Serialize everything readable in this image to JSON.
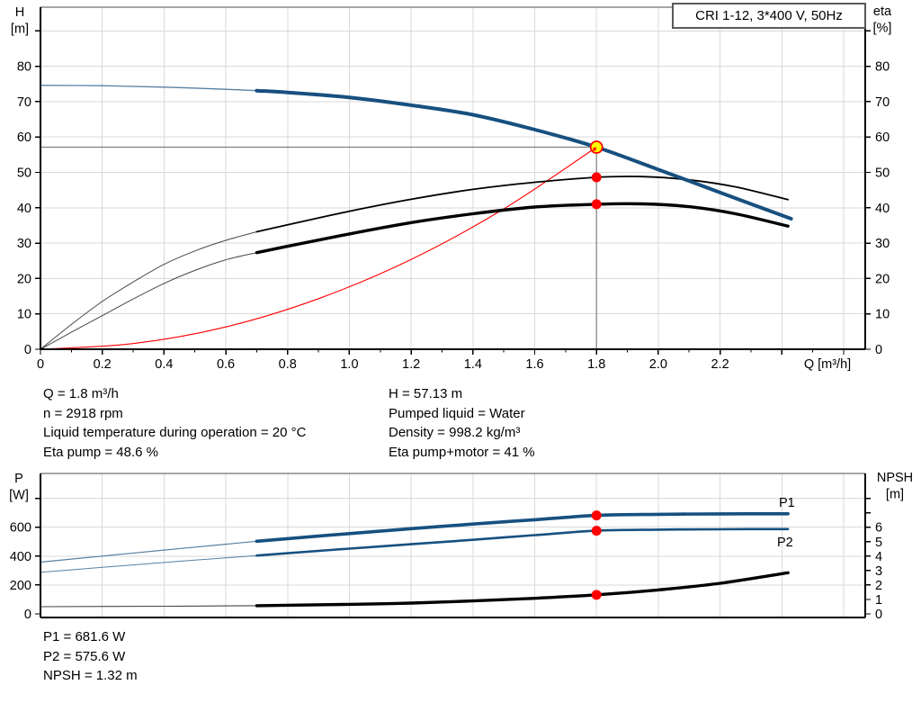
{
  "title_box": {
    "text": "CRI 1-12, 3*400 V, 50Hz"
  },
  "operating_point_info": {
    "left_column": [
      "Q = 1.8 m³/h",
      "n = 2918 rpm",
      "Liquid temperature during operation = 20 °C",
      "Eta pump = 48.6 %"
    ],
    "right_column": [
      "H = 57.13 m",
      "Pumped liquid = Water",
      "Density = 998.2 kg/m³",
      "Eta pump+motor = 41 %"
    ],
    "bottom_block": [
      "P1 = 681.6 W",
      "P2 = 575.6 W",
      "NPSH = 1.32 m"
    ]
  },
  "colors": {
    "curve_blue": "#17507f",
    "curve_black": "#000000",
    "curve_red": "#ff0000",
    "marker_red": "#ff0000",
    "marker_yellow": "#ffff00",
    "grid": "#d9d9d9",
    "guide": "#7f7f7f",
    "axis": "#000000"
  },
  "chart_data": [
    {
      "type": "line",
      "title": "CRI 1-12, 3*400 V, 50Hz",
      "x_axis": {
        "label": "Q [m³/h]",
        "min": 0,
        "max": 2.67,
        "major_ticks": [
          0,
          0.2,
          0.4,
          0.6,
          0.8,
          1.0,
          1.2,
          1.4,
          1.6,
          1.8,
          2.0,
          2.2,
          2.4,
          2.6
        ],
        "tick_labels": [
          "0",
          "0.2",
          "0.4",
          "0.6",
          "0.8",
          "1.0",
          "1.2",
          "1.4",
          "1.6",
          "1.8",
          "2.0",
          "2.2"
        ],
        "minor_step": 0.1,
        "show_ticks": true
      },
      "y_left": {
        "label_lines": [
          "H",
          "[m]"
        ],
        "min": 0,
        "max": 96.7,
        "ticks": [
          0,
          10,
          20,
          30,
          40,
          50,
          60,
          70,
          80,
          90
        ],
        "tick_labels": [
          "0",
          "10",
          "20",
          "30",
          "40",
          "50",
          "60",
          "70",
          "80"
        ]
      },
      "y_right": {
        "label_lines": [
          "eta",
          "[%]"
        ],
        "min": 0,
        "max": 96.7,
        "ticks": [
          0,
          10,
          20,
          30,
          40,
          50,
          60,
          70,
          80,
          90
        ],
        "tick_labels": [
          "0",
          "10",
          "20",
          "30",
          "40",
          "50",
          "60",
          "70",
          "80"
        ]
      },
      "guides": {
        "q": 1.8,
        "value": 57.13
      },
      "series": [
        {
          "name": "system-curve",
          "legend": "system curve",
          "color": "#ff0000",
          "axis": "left",
          "thin_until": null,
          "width_thin": 1.1,
          "width": 1.1,
          "points": [
            [
              0,
              0
            ],
            [
              0.3,
              1.6
            ],
            [
              0.6,
              6.3
            ],
            [
              0.9,
              14.3
            ],
            [
              1.2,
              25.4
            ],
            [
              1.5,
              39.7
            ],
            [
              1.8,
              57.13
            ]
          ]
        },
        {
          "name": "eta-pump-curve",
          "legend": "Eta pump",
          "color": "#000000",
          "axis": "right",
          "thin_until": 0.7,
          "width_thin": 1.0,
          "width": 1.8,
          "points": [
            [
              0,
              0
            ],
            [
              0.1,
              7
            ],
            [
              0.2,
              13.5
            ],
            [
              0.3,
              19
            ],
            [
              0.4,
              24
            ],
            [
              0.5,
              27.8
            ],
            [
              0.6,
              30.8
            ],
            [
              0.7,
              33.2
            ],
            [
              0.8,
              35.2
            ],
            [
              1.0,
              39.0
            ],
            [
              1.2,
              42.4
            ],
            [
              1.4,
              45.2
            ],
            [
              1.6,
              47.2
            ],
            [
              1.8,
              48.6
            ],
            [
              1.95,
              48.8
            ],
            [
              2.1,
              47.9
            ],
            [
              2.25,
              45.9
            ],
            [
              2.42,
              42.3
            ]
          ]
        },
        {
          "name": "eta-pump-motor-curve",
          "legend": "Eta pump+motor",
          "color": "#000000",
          "axis": "right",
          "thin_until": 0.7,
          "width_thin": 1.0,
          "width": 3.4,
          "points": [
            [
              0,
              0
            ],
            [
              0.1,
              4.8
            ],
            [
              0.2,
              9.5
            ],
            [
              0.3,
              14.2
            ],
            [
              0.4,
              18.6
            ],
            [
              0.5,
              22.3
            ],
            [
              0.6,
              25.3
            ],
            [
              0.7,
              27.3
            ],
            [
              0.8,
              29.1
            ],
            [
              1.0,
              32.6
            ],
            [
              1.2,
              35.8
            ],
            [
              1.4,
              38.3
            ],
            [
              1.6,
              40.2
            ],
            [
              1.8,
              41.0
            ],
            [
              1.95,
              41.1
            ],
            [
              2.1,
              40.3
            ],
            [
              2.25,
              38.3
            ],
            [
              2.42,
              34.8
            ]
          ]
        },
        {
          "name": "head-curve",
          "legend": "H",
          "color": "#17507f",
          "axis": "left",
          "thin_until": 0.7,
          "width_thin": 1.3,
          "width": 4,
          "points": [
            [
              0,
              74.6
            ],
            [
              0.2,
              74.5
            ],
            [
              0.4,
              74.1
            ],
            [
              0.6,
              73.5
            ],
            [
              0.7,
              73.1
            ],
            [
              0.8,
              72.6
            ],
            [
              1.0,
              71.2
            ],
            [
              1.2,
              69.0
            ],
            [
              1.4,
              66.3
            ],
            [
              1.6,
              62.1
            ],
            [
              1.8,
              57.13
            ],
            [
              2.0,
              50.8
            ],
            [
              2.2,
              44.3
            ],
            [
              2.43,
              36.9
            ]
          ]
        }
      ],
      "markers": [
        {
          "q": 1.8,
          "value": 57.13,
          "axis": "left",
          "style": "duty"
        },
        {
          "q": 1.8,
          "value": 48.6,
          "axis": "right",
          "style": "dot"
        },
        {
          "q": 1.8,
          "value": 41.0,
          "axis": "right",
          "style": "dot"
        }
      ]
    },
    {
      "type": "line",
      "title": "",
      "x_axis": {
        "label": "",
        "min": 0,
        "max": 2.67,
        "major_ticks": [
          0,
          0.2,
          0.4,
          0.6,
          0.8,
          1.0,
          1.2,
          1.4,
          1.6,
          1.8,
          2.0,
          2.2,
          2.4,
          2.6
        ],
        "tick_labels": [],
        "minor_step": 0,
        "show_ticks": false
      },
      "y_left": {
        "label_lines": [
          "P",
          "[W]"
        ],
        "min": 0,
        "max": 972,
        "ticks": [
          0,
          200,
          400,
          600,
          800
        ],
        "tick_labels": [
          "0",
          "200",
          "400",
          "600"
        ]
      },
      "y_right": {
        "label_lines": [
          "NPSH",
          "[m]"
        ],
        "min": 0,
        "max": 9.72,
        "ticks": [
          0,
          1,
          2,
          3,
          4,
          5,
          6,
          7,
          8
        ],
        "tick_labels": [
          "0",
          "1",
          "2",
          "3",
          "4",
          "5",
          "6"
        ]
      },
      "guides": null,
      "series": [
        {
          "name": "npsh-curve",
          "legend": "NPSH",
          "color": "#000000",
          "axis": "right",
          "thin_until": 0.7,
          "width_thin": 1.1,
          "width": 3.4,
          "points": [
            [
              0,
              0.5
            ],
            [
              0.4,
              0.53
            ],
            [
              0.7,
              0.57
            ],
            [
              1.0,
              0.66
            ],
            [
              1.2,
              0.75
            ],
            [
              1.4,
              0.9
            ],
            [
              1.6,
              1.08
            ],
            [
              1.8,
              1.32
            ],
            [
              2.0,
              1.66
            ],
            [
              2.2,
              2.12
            ],
            [
              2.42,
              2.85
            ]
          ]
        },
        {
          "name": "p2-curve",
          "legend": "P2",
          "label": "P2",
          "color": "#17507f",
          "axis": "left",
          "thin_until": 0.7,
          "width_thin": 1.0,
          "width": 2.6,
          "points": [
            [
              0,
              288
            ],
            [
              0.2,
              322
            ],
            [
              0.4,
              356
            ],
            [
              0.6,
              388
            ],
            [
              0.7,
              404
            ],
            [
              0.8,
              420
            ],
            [
              1.0,
              452
            ],
            [
              1.2,
              482
            ],
            [
              1.4,
              513
            ],
            [
              1.6,
              545
            ],
            [
              1.8,
              575.6
            ],
            [
              2.0,
              583
            ],
            [
              2.2,
              586
            ],
            [
              2.42,
              587
            ]
          ]
        },
        {
          "name": "p1-curve",
          "legend": "P1",
          "label": "P1",
          "color": "#17507f",
          "axis": "left",
          "thin_until": 0.7,
          "width_thin": 1.2,
          "width": 3.6,
          "points": [
            [
              0,
              358
            ],
            [
              0.2,
              400
            ],
            [
              0.4,
              442
            ],
            [
              0.6,
              482
            ],
            [
              0.7,
              503
            ],
            [
              0.8,
              521
            ],
            [
              1.0,
              556
            ],
            [
              1.2,
              590
            ],
            [
              1.4,
              622
            ],
            [
              1.6,
              652
            ],
            [
              1.8,
              681.6
            ],
            [
              2.0,
              689
            ],
            [
              2.2,
              692
            ],
            [
              2.42,
              693
            ]
          ]
        }
      ],
      "markers": [
        {
          "q": 1.8,
          "value": 681.6,
          "axis": "left",
          "style": "dot"
        },
        {
          "q": 1.8,
          "value": 575.6,
          "axis": "left",
          "style": "dot"
        },
        {
          "q": 1.8,
          "value": 1.32,
          "axis": "right",
          "style": "dot"
        }
      ]
    }
  ]
}
